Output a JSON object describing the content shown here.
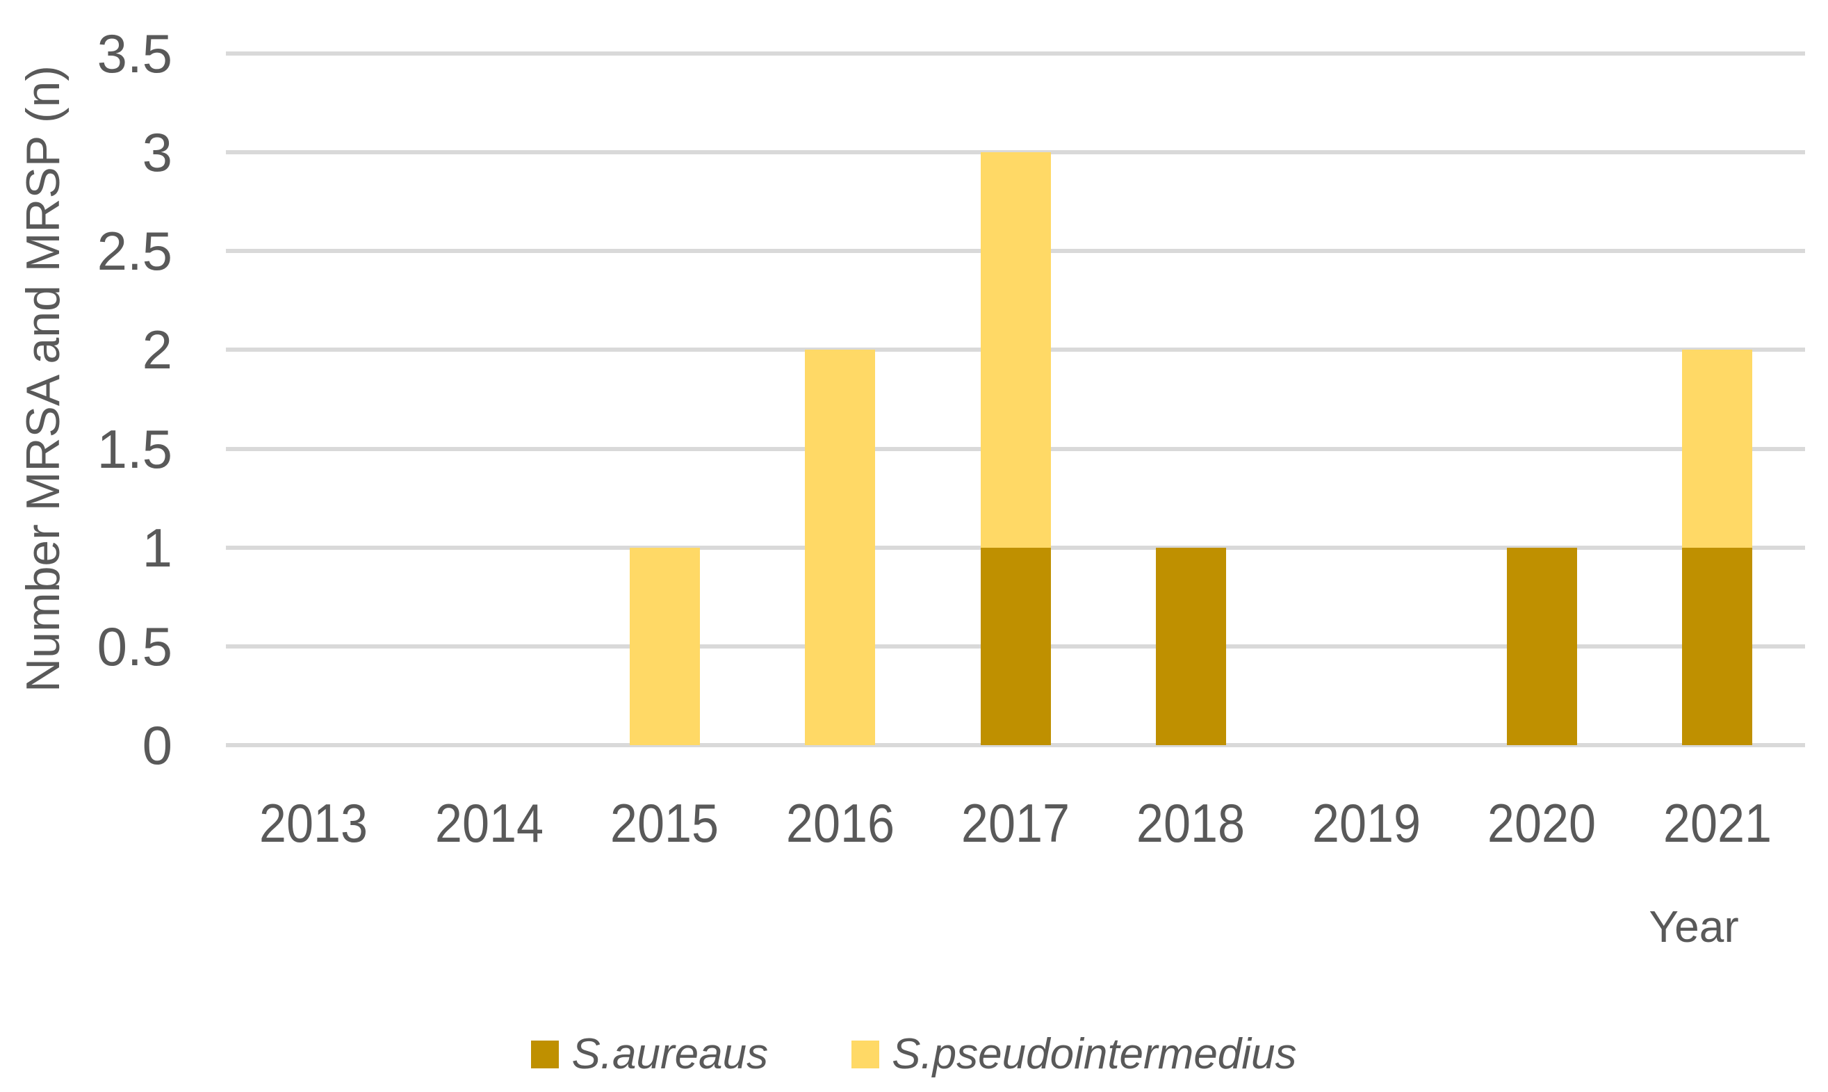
{
  "chart_data": {
    "type": "bar",
    "stacked": true,
    "categories": [
      "2013",
      "2014",
      "2015",
      "2016",
      "2017",
      "2018",
      "2019",
      "2020",
      "2021"
    ],
    "series": [
      {
        "name": "S.aureaus",
        "color": "#BF9000",
        "values": [
          0,
          0,
          0,
          0,
          1,
          1,
          0,
          1,
          1
        ]
      },
      {
        "name": "S.pseudointermedius",
        "color": "#FFD966",
        "values": [
          0,
          0,
          1,
          2,
          2,
          0,
          0,
          0,
          1
        ]
      }
    ],
    "xlabel": "Year",
    "ylabel": "Number MRSA and MRSP (n)",
    "ylim": [
      0,
      3.5
    ],
    "ytick_step": 0.5,
    "ytick_labels": [
      "0",
      "0.5",
      "1",
      "1.5",
      "2",
      "2.5",
      "3",
      "3.5"
    ],
    "grid": true,
    "gridline_color": "#D9D9D9",
    "text_color": "#595959",
    "legend_position": "bottom"
  }
}
